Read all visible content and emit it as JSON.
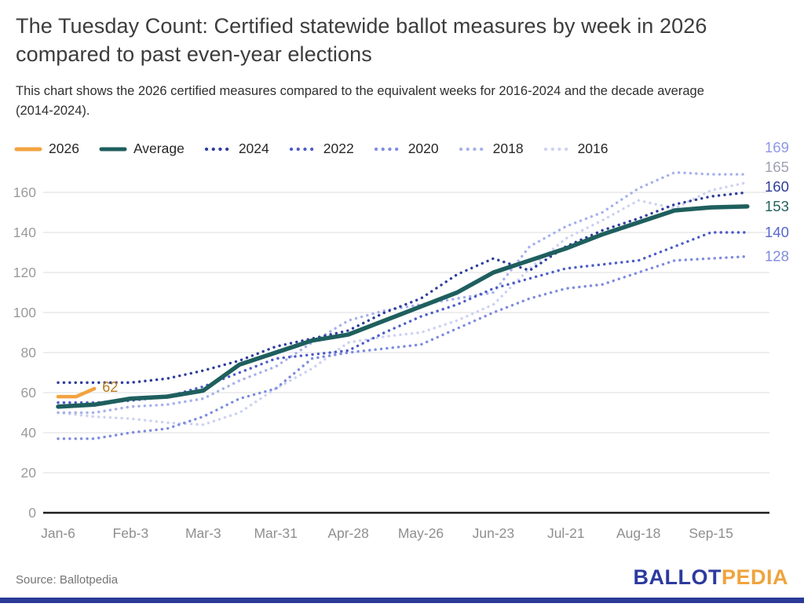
{
  "header": {
    "title": "The Tuesday Count: Certified statewide ballot measures by week in 2026 compared to past even-year elections",
    "subtitle": "This chart shows the 2026 certified measures compared to the equivalent weeks for 2016-2024 and the decade average (2014-2024)."
  },
  "colors": {
    "accent_orange": "#f2a340",
    "accent_teal": "#1e5f5e",
    "logo_blue": "#2b3a9e",
    "logo_orange": "#f0a33c",
    "grid": "#e8e8e8",
    "axis_line": "#1f1f1f",
    "tick_text": "#9b9b9b"
  },
  "chart_data": {
    "type": "line",
    "title": "Certified statewide ballot measures by week",
    "xlabel": "",
    "ylabel": "",
    "x_tick_labels": [
      "Jan-6",
      "Feb-3",
      "Mar-3",
      "Mar-31",
      "Apr-28",
      "May-26",
      "Jun-23",
      "Jul-21",
      "Aug-18",
      "Sep-15"
    ],
    "weeks_per_tick": 4,
    "yticks": [
      0,
      20,
      40,
      60,
      80,
      100,
      120,
      140,
      160
    ],
    "ylim": [
      0,
      175
    ],
    "grid": true,
    "legend_position": "top",
    "series": [
      {
        "name": "2026",
        "style": "solid",
        "color": "#f2a340",
        "label_color": "#b97a1a",
        "end_label": "62",
        "week_start": 0,
        "week_step": 1,
        "values": [
          58,
          58,
          62
        ]
      },
      {
        "name": "Average",
        "style": "solid",
        "color": "#1e5f5e",
        "label_color": "#20625f",
        "end_label": "153",
        "week_start": 0,
        "week_step": 2,
        "values": [
          53,
          54,
          57,
          58,
          61,
          74,
          80,
          86,
          89,
          96,
          103,
          110,
          120,
          126,
          132,
          139,
          145,
          151,
          152.5,
          153
        ]
      },
      {
        "name": "2024",
        "style": "dotted",
        "color": "#2e3d9c",
        "label_color": "#2e3d9c",
        "end_label": "160",
        "week_start": 0,
        "week_step": 2,
        "values": [
          65,
          65,
          65,
          67,
          71,
          76,
          83,
          87,
          91,
          100,
          107,
          119,
          127,
          121,
          133,
          141,
          147,
          154,
          158,
          160
        ]
      },
      {
        "name": "2022",
        "style": "dotted",
        "color": "#4d5cc9",
        "label_color": "#5766cf",
        "end_label": "140",
        "week_start": 0,
        "week_step": 2,
        "values": [
          55,
          55,
          56,
          58,
          63,
          70,
          77,
          79,
          81,
          90,
          98,
          104,
          112,
          117,
          122,
          124,
          126,
          133,
          140,
          140
        ]
      },
      {
        "name": "2020",
        "style": "dotted",
        "color": "#7e8bdf",
        "label_color": "#7e8bdf",
        "end_label": "128",
        "week_start": 0,
        "week_step": 2,
        "values": [
          37,
          37,
          40,
          42,
          48,
          57,
          62,
          77,
          80,
          82,
          84,
          92,
          100,
          107,
          112,
          114,
          120,
          126,
          127,
          128
        ]
      },
      {
        "name": "2018",
        "style": "dotted",
        "color": "#a6b0ec",
        "label_color": "#8e98e8",
        "end_label": "169",
        "week_start": 0,
        "week_step": 2,
        "values": [
          50,
          50,
          53,
          54,
          57,
          66,
          73,
          85,
          96,
          101,
          104,
          107,
          110,
          133,
          143,
          150,
          162,
          170,
          169,
          169
        ]
      },
      {
        "name": "2016",
        "style": "dotted",
        "color": "#ccd1f3",
        "label_color": "#a0a0b4",
        "end_label": "165",
        "week_start": 0,
        "week_step": 2,
        "values": [
          50,
          48,
          47,
          45,
          44,
          50,
          62,
          72,
          85,
          88,
          90,
          96,
          104,
          122,
          137,
          146,
          156,
          152,
          161,
          165
        ]
      }
    ]
  },
  "footer": {
    "source": "Source: Ballotpedia",
    "logo_ballot": "BALLOT",
    "logo_pedia": "PEDIA"
  }
}
